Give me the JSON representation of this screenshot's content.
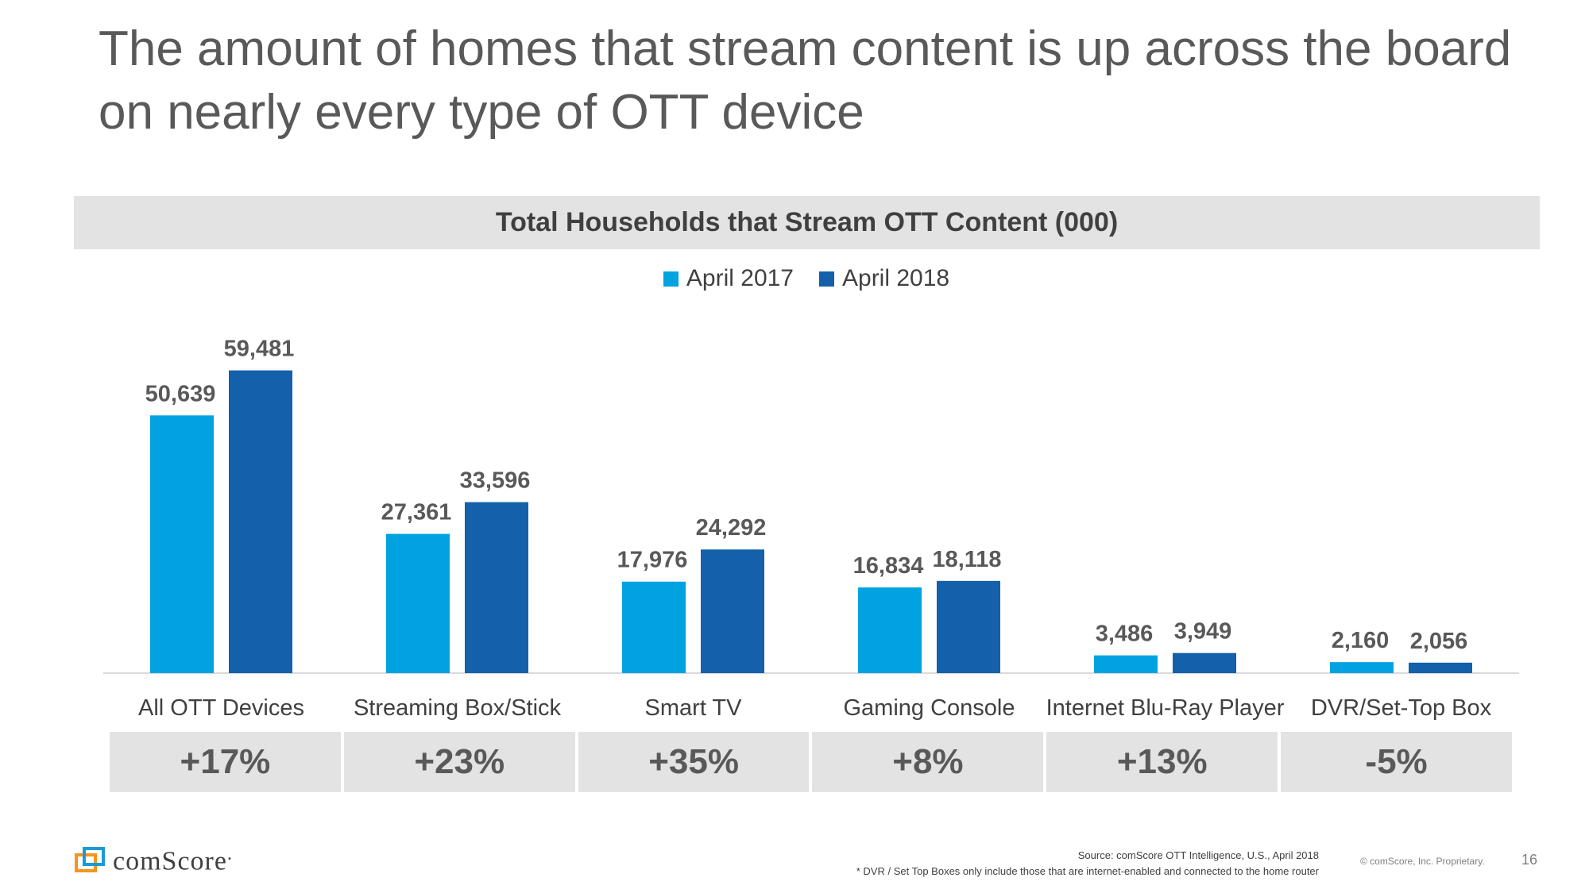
{
  "slide": {
    "title": "The amount of homes that stream content is up across the board on nearly every type of OTT device",
    "page_number": "16",
    "copyright": "© comScore, Inc. Proprietary.",
    "source_line": "Source: comScore OTT Intelligence, U.S., April 2018",
    "footnote": "* DVR / Set Top Boxes only include those that are internet-enabled and connected to the home router",
    "logo_text": "comScore",
    "logo_mark": "."
  },
  "colors": {
    "april_2017": "#00a3e0",
    "april_2018": "#1460aa"
  },
  "chart_data": {
    "type": "bar",
    "title": "Total Households that Stream OTT Content (000)",
    "categories": [
      "All OTT Devices",
      "Streaming Box/Stick",
      "Smart TV",
      "Gaming Console",
      "Internet Blu-Ray Player",
      "DVR/Set-Top Box"
    ],
    "series": [
      {
        "name": "April 2017",
        "values": [
          50639,
          27361,
          17976,
          16834,
          3486,
          2160
        ],
        "labels": [
          "50,639",
          "27,361",
          "17,976",
          "16,834",
          "3,486",
          "2,160"
        ]
      },
      {
        "name": "April 2018",
        "values": [
          59481,
          33596,
          24292,
          18118,
          3949,
          2056
        ],
        "labels": [
          "59,481",
          "33,596",
          "24,292",
          "18,118",
          "3,949",
          "2,056"
        ]
      }
    ],
    "growth": [
      "+17%",
      "+23%",
      "+35%",
      "+8%",
      "+13%",
      "-5%"
    ],
    "legend_position": "top-center",
    "ylim": [
      0,
      65000
    ],
    "grid": false
  }
}
